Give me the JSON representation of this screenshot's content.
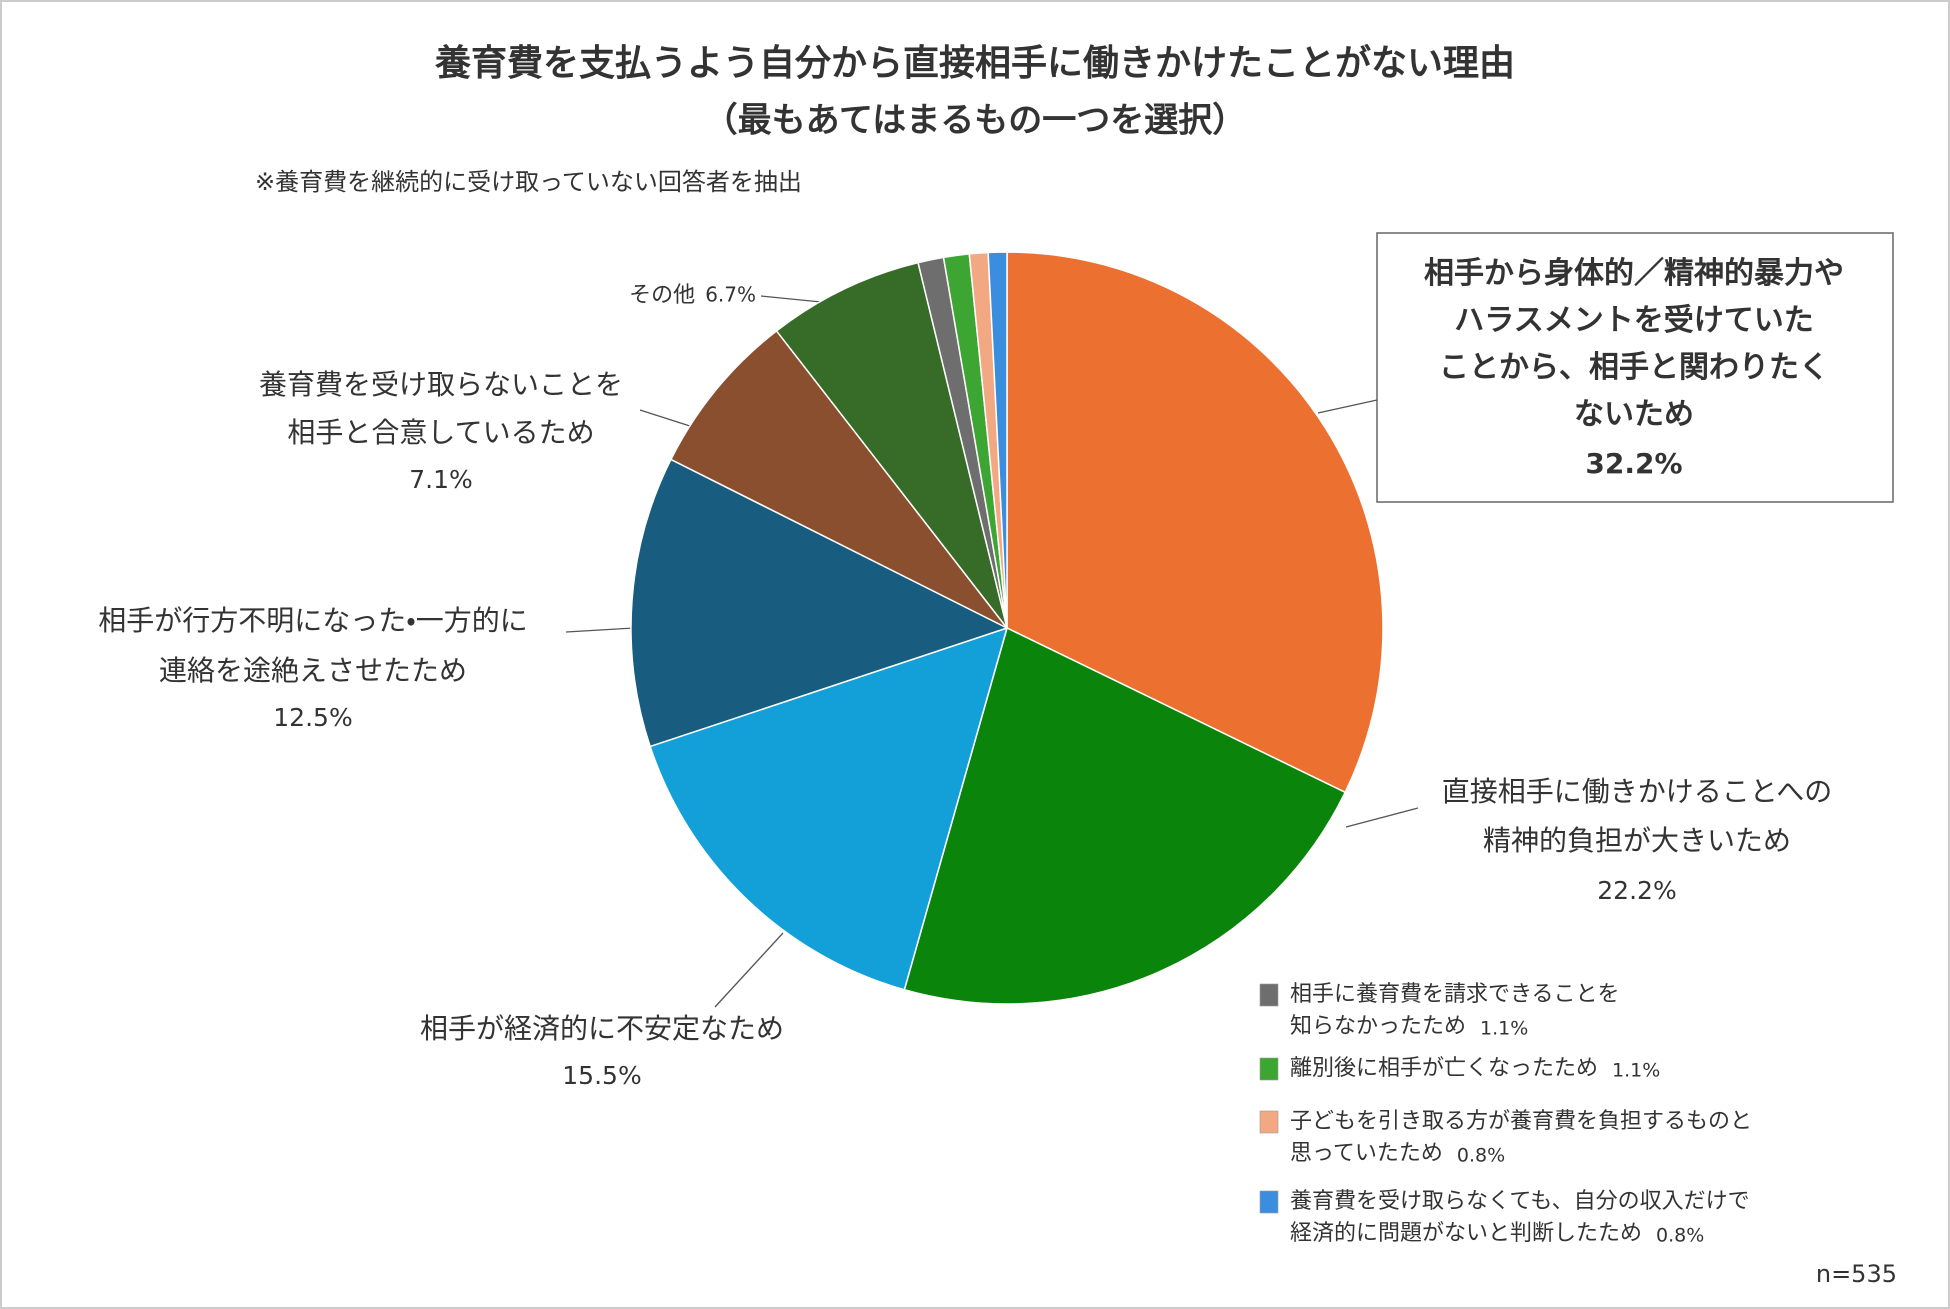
{
  "chart_data": {
    "type": "pie",
    "title": "養育費を支払うよう自分から直接相手に働きかけたことがない理由",
    "subtitle": "（最もあてはまるもの一つを選択）",
    "note": "※養育費を継続的に受け取っていない回答者を抽出",
    "sample_size": "n=535",
    "categories": [
      "相手から身体的／精神的暴力や\nハラスメントを受けていた\nことから、相手と関わりたく\nないため",
      "直接相手に働きかけることへの\n精神的負担が大きいため",
      "相手が経済的に不安定なため",
      "相手が行方不明になった・一方的に\n連絡を途絶えさせたため",
      "養育費を受け取らないことを\n相手と合意しているため",
      "その他",
      "相手に養育費を請求できることを\n知らなかったため",
      "離別後に相手が亡くなったため",
      "子どもを引き取る方が養育費を負担するものと\n思っていたため",
      "養育費を受け取らなくても、自分の収入だけで\n経済的に問題がないと判断したため"
    ],
    "values": [
      32.2,
      22.2,
      15.5,
      12.5,
      7.1,
      6.7,
      1.1,
      1.1,
      0.8,
      0.8
    ],
    "value_labels": [
      "32.2%",
      "22.2%",
      "15.5%",
      "12.5%",
      "7.1%",
      "6.7%",
      "1.1%",
      "1.1%",
      "0.8%",
      "0.8%"
    ],
    "colors": [
      "#EC7030",
      "#0A840A",
      "#13A0D8",
      "#185C80",
      "#8A4F2F",
      "#376B28",
      "#6E6E6E",
      "#3DA632",
      "#F2A882",
      "#3B8EDE"
    ]
  }
}
